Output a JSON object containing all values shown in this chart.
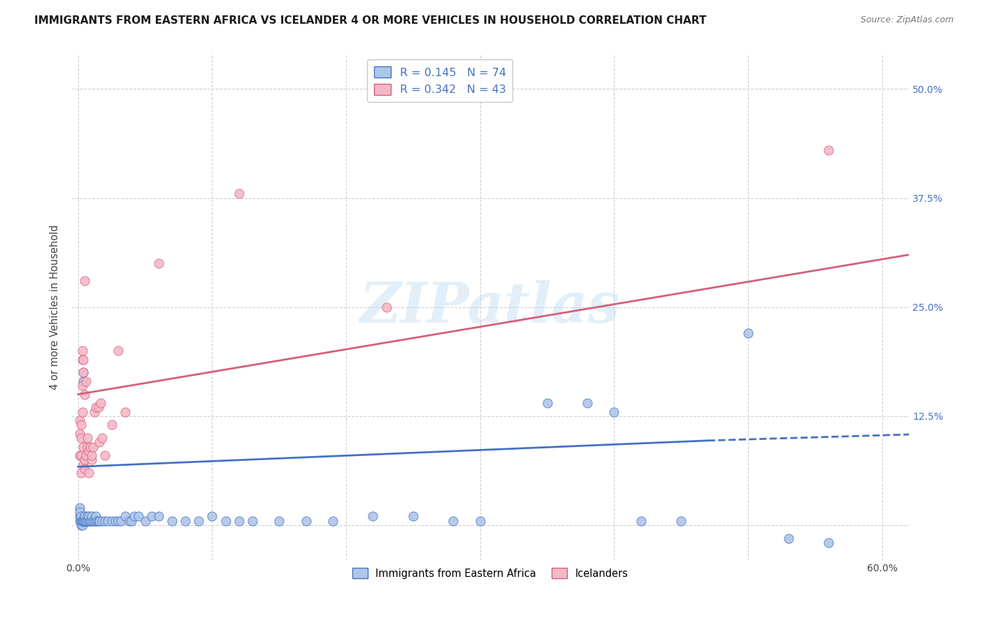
{
  "title": "IMMIGRANTS FROM EASTERN AFRICA VS ICELANDER 4 OR MORE VEHICLES IN HOUSEHOLD CORRELATION CHART",
  "source": "Source: ZipAtlas.com",
  "ylabel": "4 or more Vehicles in Household",
  "x_ticks": [
    0.0,
    0.1,
    0.2,
    0.3,
    0.4,
    0.5,
    0.6
  ],
  "y_ticks": [
    0.0,
    0.125,
    0.25,
    0.375,
    0.5
  ],
  "y_tick_labels_right": [
    "",
    "12.5%",
    "25.0%",
    "37.5%",
    "50.0%"
  ],
  "xlim": [
    -0.005,
    0.62
  ],
  "ylim": [
    -0.04,
    0.54
  ],
  "blue_color": "#aec6e8",
  "pink_color": "#f5b8c8",
  "blue_line_color": "#4472c4",
  "pink_line_color": "#d4607a",
  "blue_R": 0.145,
  "blue_N": 74,
  "pink_R": 0.342,
  "pink_N": 43,
  "legend_label_blue": "Immigrants from Eastern Africa",
  "legend_label_pink": "Icelanders",
  "watermark": "ZIPatlas",
  "grid_color": "#d0d0d0",
  "blue_scatter": [
    [
      0.001,
      0.02
    ],
    [
      0.001,
      0.01
    ],
    [
      0.001,
      0.005
    ],
    [
      0.001,
      0.015
    ],
    [
      0.002,
      0.005
    ],
    [
      0.002,
      0.0
    ],
    [
      0.002,
      0.005
    ],
    [
      0.002,
      0.01
    ],
    [
      0.003,
      0.0
    ],
    [
      0.003,
      0.005
    ],
    [
      0.003,
      0.005
    ],
    [
      0.003,
      0.005
    ],
    [
      0.004,
      0.005
    ],
    [
      0.004,
      0.005
    ],
    [
      0.004,
      0.165
    ],
    [
      0.004,
      0.175
    ],
    [
      0.005,
      0.005
    ],
    [
      0.005,
      0.01
    ],
    [
      0.005,
      0.005
    ],
    [
      0.005,
      0.01
    ],
    [
      0.006,
      0.005
    ],
    [
      0.006,
      0.005
    ],
    [
      0.007,
      0.01
    ],
    [
      0.007,
      0.005
    ],
    [
      0.008,
      0.005
    ],
    [
      0.008,
      0.01
    ],
    [
      0.009,
      0.005
    ],
    [
      0.009,
      0.005
    ],
    [
      0.01,
      0.005
    ],
    [
      0.01,
      0.01
    ],
    [
      0.011,
      0.005
    ],
    [
      0.012,
      0.005
    ],
    [
      0.013,
      0.005
    ],
    [
      0.013,
      0.01
    ],
    [
      0.014,
      0.005
    ],
    [
      0.015,
      0.005
    ],
    [
      0.016,
      0.005
    ],
    [
      0.018,
      0.005
    ],
    [
      0.02,
      0.005
    ],
    [
      0.022,
      0.005
    ],
    [
      0.025,
      0.005
    ],
    [
      0.028,
      0.005
    ],
    [
      0.03,
      0.005
    ],
    [
      0.032,
      0.005
    ],
    [
      0.035,
      0.01
    ],
    [
      0.038,
      0.005
    ],
    [
      0.04,
      0.005
    ],
    [
      0.042,
      0.01
    ],
    [
      0.045,
      0.01
    ],
    [
      0.05,
      0.005
    ],
    [
      0.055,
      0.01
    ],
    [
      0.06,
      0.01
    ],
    [
      0.07,
      0.005
    ],
    [
      0.08,
      0.005
    ],
    [
      0.09,
      0.005
    ],
    [
      0.1,
      0.01
    ],
    [
      0.11,
      0.005
    ],
    [
      0.12,
      0.005
    ],
    [
      0.13,
      0.005
    ],
    [
      0.15,
      0.005
    ],
    [
      0.17,
      0.005
    ],
    [
      0.19,
      0.005
    ],
    [
      0.22,
      0.01
    ],
    [
      0.25,
      0.01
    ],
    [
      0.28,
      0.005
    ],
    [
      0.3,
      0.005
    ],
    [
      0.35,
      0.14
    ],
    [
      0.38,
      0.14
    ],
    [
      0.4,
      0.13
    ],
    [
      0.42,
      0.005
    ],
    [
      0.45,
      0.005
    ],
    [
      0.5,
      0.22
    ],
    [
      0.53,
      -0.015
    ],
    [
      0.56,
      -0.02
    ]
  ],
  "pink_scatter": [
    [
      0.001,
      0.08
    ],
    [
      0.001,
      0.105
    ],
    [
      0.001,
      0.12
    ],
    [
      0.002,
      0.1
    ],
    [
      0.002,
      0.115
    ],
    [
      0.002,
      0.08
    ],
    [
      0.002,
      0.06
    ],
    [
      0.003,
      0.13
    ],
    [
      0.003,
      0.19
    ],
    [
      0.003,
      0.2
    ],
    [
      0.003,
      0.16
    ],
    [
      0.004,
      0.175
    ],
    [
      0.004,
      0.19
    ],
    [
      0.004,
      0.09
    ],
    [
      0.004,
      0.07
    ],
    [
      0.005,
      0.15
    ],
    [
      0.005,
      0.28
    ],
    [
      0.005,
      0.075
    ],
    [
      0.005,
      0.065
    ],
    [
      0.006,
      0.165
    ],
    [
      0.006,
      0.08
    ],
    [
      0.007,
      0.09
    ],
    [
      0.007,
      0.1
    ],
    [
      0.008,
      0.085
    ],
    [
      0.008,
      0.06
    ],
    [
      0.009,
      0.09
    ],
    [
      0.01,
      0.075
    ],
    [
      0.01,
      0.08
    ],
    [
      0.011,
      0.09
    ],
    [
      0.012,
      0.13
    ],
    [
      0.013,
      0.135
    ],
    [
      0.015,
      0.135
    ],
    [
      0.016,
      0.095
    ],
    [
      0.017,
      0.14
    ],
    [
      0.018,
      0.1
    ],
    [
      0.02,
      0.08
    ],
    [
      0.025,
      0.115
    ],
    [
      0.03,
      0.2
    ],
    [
      0.035,
      0.13
    ],
    [
      0.06,
      0.3
    ],
    [
      0.12,
      0.38
    ],
    [
      0.23,
      0.25
    ],
    [
      0.56,
      0.43
    ]
  ],
  "blue_trendline_solid": [
    [
      0.0,
      0.067
    ],
    [
      0.47,
      0.097
    ]
  ],
  "blue_trendline_dashed": [
    [
      0.47,
      0.097
    ],
    [
      0.62,
      0.104
    ]
  ],
  "pink_trendline": [
    [
      0.0,
      0.15
    ],
    [
      0.62,
      0.31
    ]
  ]
}
